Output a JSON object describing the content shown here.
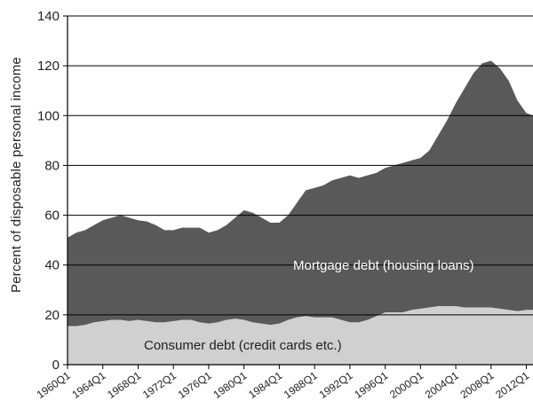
{
  "chart_data": {
    "type": "area",
    "stacked": true,
    "ylabel": "Percent of disposable personal income",
    "xlabel": "",
    "ylim": [
      0,
      140
    ],
    "yticks": [
      0,
      20,
      40,
      60,
      80,
      100,
      120,
      140
    ],
    "grid": "horizontal",
    "x_tick_labels": [
      "1960Q1",
      "1964Q1",
      "1968Q1",
      "1972Q1",
      "1976Q1",
      "1980Q1",
      "1984Q1",
      "1988Q1",
      "1992Q1",
      "1996Q1",
      "2000Q1",
      "2004Q1",
      "2008Q1",
      "2012Q1"
    ],
    "x_range": [
      "1960Q1",
      "2012Q4"
    ],
    "colors": {
      "mortgage": "#595959",
      "consumer": "#d0d0d0",
      "grid": "#000000",
      "axis": "#000000"
    },
    "series": [
      {
        "name": "Consumer debt (credit cards etc.)",
        "key": "consumer",
        "points": [
          [
            "1960Q1",
            15.5
          ],
          [
            "1961Q1",
            15.5
          ],
          [
            "1962Q1",
            16
          ],
          [
            "1963Q1",
            17
          ],
          [
            "1964Q1",
            17.5
          ],
          [
            "1965Q1",
            18
          ],
          [
            "1966Q1",
            18
          ],
          [
            "1967Q1",
            17.5
          ],
          [
            "1968Q1",
            18
          ],
          [
            "1969Q1",
            17.5
          ],
          [
            "1970Q1",
            17
          ],
          [
            "1971Q1",
            17
          ],
          [
            "1972Q1",
            17.5
          ],
          [
            "1973Q1",
            18
          ],
          [
            "1974Q1",
            18
          ],
          [
            "1975Q1",
            17
          ],
          [
            "1976Q1",
            16.5
          ],
          [
            "1977Q1",
            17
          ],
          [
            "1978Q1",
            18
          ],
          [
            "1979Q1",
            18.5
          ],
          [
            "1980Q1",
            18
          ],
          [
            "1981Q1",
            17
          ],
          [
            "1982Q1",
            16.5
          ],
          [
            "1983Q1",
            16
          ],
          [
            "1984Q1",
            16.5
          ],
          [
            "1985Q1",
            18
          ],
          [
            "1986Q1",
            19
          ],
          [
            "1987Q1",
            19.5
          ],
          [
            "1988Q1",
            19
          ],
          [
            "1989Q1",
            19
          ],
          [
            "1990Q1",
            19
          ],
          [
            "1991Q1",
            18
          ],
          [
            "1992Q1",
            17
          ],
          [
            "1993Q1",
            17
          ],
          [
            "1994Q1",
            18
          ],
          [
            "1995Q1",
            19.5
          ],
          [
            "1996Q1",
            21
          ],
          [
            "1997Q1",
            21
          ],
          [
            "1998Q1",
            21
          ],
          [
            "1999Q1",
            22
          ],
          [
            "2000Q1",
            22.5
          ],
          [
            "2001Q1",
            23
          ],
          [
            "2002Q1",
            23.5
          ],
          [
            "2003Q1",
            23.5
          ],
          [
            "2004Q1",
            23.5
          ],
          [
            "2005Q1",
            23
          ],
          [
            "2006Q1",
            23
          ],
          [
            "2007Q1",
            23
          ],
          [
            "2008Q1",
            23
          ],
          [
            "2009Q1",
            22.5
          ],
          [
            "2010Q1",
            22
          ],
          [
            "2011Q1",
            21.5
          ],
          [
            "2012Q1",
            22
          ],
          [
            "2012Q4",
            22
          ]
        ]
      },
      {
        "name": "Mortgage debt (housing loans)",
        "key": "mortgage",
        "total_points": [
          [
            "1960Q1",
            51
          ],
          [
            "1961Q1",
            53
          ],
          [
            "1962Q1",
            54
          ],
          [
            "1963Q1",
            56
          ],
          [
            "1964Q1",
            58
          ],
          [
            "1965Q1",
            59
          ],
          [
            "1966Q1",
            60
          ],
          [
            "1967Q1",
            59
          ],
          [
            "1968Q1",
            58
          ],
          [
            "1969Q1",
            57.5
          ],
          [
            "1970Q1",
            56
          ],
          [
            "1971Q1",
            54
          ],
          [
            "1972Q1",
            54
          ],
          [
            "1973Q1",
            55
          ],
          [
            "1974Q1",
            55
          ],
          [
            "1975Q1",
            55
          ],
          [
            "1976Q1",
            53
          ],
          [
            "1977Q1",
            54
          ],
          [
            "1978Q1",
            56
          ],
          [
            "1979Q1",
            59
          ],
          [
            "1980Q1",
            62
          ],
          [
            "1981Q1",
            61
          ],
          [
            "1982Q1",
            59
          ],
          [
            "1983Q1",
            57
          ],
          [
            "1984Q1",
            57
          ],
          [
            "1985Q1",
            60
          ],
          [
            "1986Q1",
            65
          ],
          [
            "1987Q1",
            70
          ],
          [
            "1988Q1",
            71
          ],
          [
            "1989Q1",
            72
          ],
          [
            "1990Q1",
            74
          ],
          [
            "1991Q1",
            75
          ],
          [
            "1992Q1",
            76
          ],
          [
            "1993Q1",
            75
          ],
          [
            "1994Q1",
            76
          ],
          [
            "1995Q1",
            77
          ],
          [
            "1996Q1",
            79
          ],
          [
            "1997Q1",
            80
          ],
          [
            "1998Q1",
            81
          ],
          [
            "1999Q1",
            82
          ],
          [
            "2000Q1",
            83
          ],
          [
            "2001Q1",
            86
          ],
          [
            "2002Q1",
            92
          ],
          [
            "2003Q1",
            98
          ],
          [
            "2004Q1",
            105
          ],
          [
            "2005Q1",
            111
          ],
          [
            "2006Q1",
            117
          ],
          [
            "2007Q1",
            121
          ],
          [
            "2008Q1",
            122
          ],
          [
            "2009Q1",
            119
          ],
          [
            "2010Q1",
            114
          ],
          [
            "2011Q1",
            106
          ],
          [
            "2012Q1",
            101
          ],
          [
            "2012Q4",
            100
          ]
        ]
      }
    ],
    "annotations": [
      {
        "text": "Mortgage debt (housing loans)",
        "series": "mortgage"
      },
      {
        "text": "Consumer debt (credit cards etc.)",
        "series": "consumer"
      }
    ]
  }
}
